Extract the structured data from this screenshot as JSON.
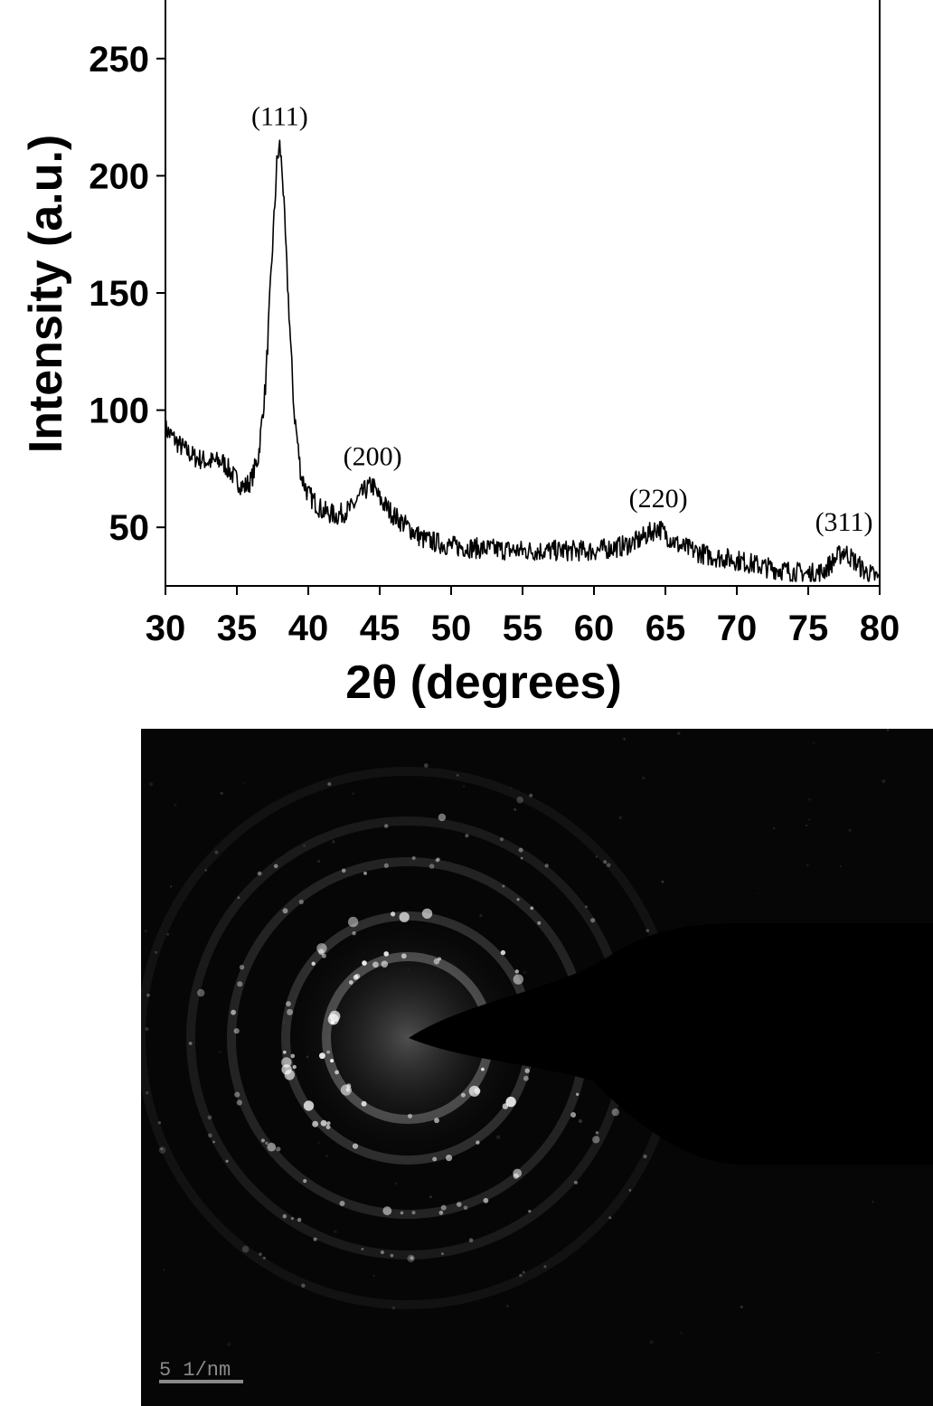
{
  "chart_data": {
    "type": "line",
    "title": "",
    "xlabel": "2θ (degrees)",
    "ylabel": "Intensity (a.u.)",
    "xlim": [
      30,
      80
    ],
    "ylim": [
      25,
      275
    ],
    "x_ticks": [
      30,
      35,
      40,
      45,
      50,
      55,
      60,
      65,
      70,
      75,
      80
    ],
    "y_ticks": [
      50,
      100,
      150,
      200,
      250
    ],
    "grid": false,
    "legend": "none",
    "line_color": "#000000",
    "series": [
      {
        "x": [
          30,
          31,
          32,
          33,
          34,
          35,
          35.5,
          36,
          36.5,
          37,
          37.5,
          37.8,
          38,
          38.2,
          38.5,
          39,
          39.5,
          40,
          41,
          42,
          43,
          44,
          44.5,
          45,
          46,
          47,
          48,
          50,
          52,
          55,
          58,
          60,
          62,
          63,
          64,
          64.5,
          65,
          66,
          68,
          70,
          72,
          74,
          75,
          76,
          77,
          77.5,
          78,
          79,
          80
        ],
        "y": [
          92,
          85,
          80,
          78,
          78,
          70,
          67,
          70,
          80,
          110,
          170,
          205,
          213,
          200,
          160,
          100,
          72,
          64,
          57,
          55,
          58,
          66,
          68,
          62,
          55,
          50,
          45,
          42,
          41,
          40,
          40,
          40,
          42,
          44,
          48,
          50,
          47,
          42,
          38,
          36,
          33,
          31,
          30,
          31,
          37,
          40,
          37,
          31,
          28
        ]
      }
    ],
    "annotations": [
      {
        "text": "(111)",
        "x": 38,
        "y": 213
      },
      {
        "text": "(200)",
        "x": 44.5,
        "y": 68
      },
      {
        "text": "(220)",
        "x": 64.5,
        "y": 50
      },
      {
        "text": "(311)",
        "x": 77.5,
        "y": 40
      }
    ]
  },
  "diffraction_image": {
    "scale_bar_label": "5 1/nm",
    "background_color": "#060606",
    "spot_color": "#ffffff",
    "scale_bar_color": "#8a8a8a"
  }
}
